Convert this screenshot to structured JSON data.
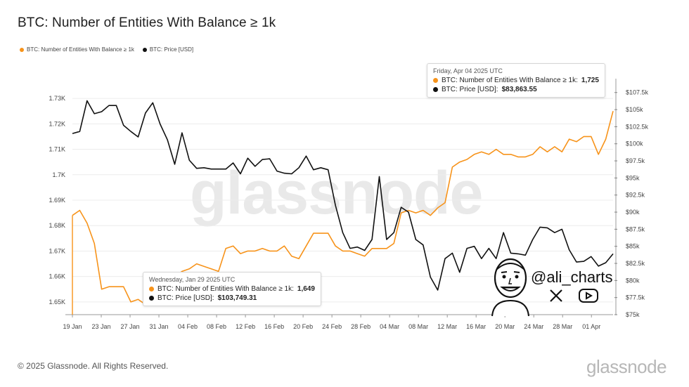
{
  "title": "BTC: Number of Entities With Balance ≥ 1k",
  "legend": {
    "entities_label": "BTC: Number of Entities With Balance ≥ 1k",
    "price_label": "BTC: Price [USD]"
  },
  "colors": {
    "entities": "#F7931A",
    "price": "#111111",
    "grid": "#ececec"
  },
  "chart_data": {
    "type": "line",
    "title": "BTC: Number of Entities With Balance ≥ 1k",
    "x_ticks": [
      "19 Jan",
      "23 Jan",
      "27 Jan",
      "31 Jan",
      "04 Feb",
      "08 Feb",
      "12 Feb",
      "16 Feb",
      "20 Feb",
      "24 Feb",
      "28 Feb",
      "04 Mar",
      "08 Mar",
      "12 Mar",
      "16 Mar",
      "20 Mar",
      "24 Mar",
      "28 Mar",
      "01 Apr"
    ],
    "y_left_ticks": [
      "1.65K",
      "1.66K",
      "1.67K",
      "1.68K",
      "1.69K",
      "1.7K",
      "1.71K",
      "1.72K",
      "1.73K"
    ],
    "y_left_range": [
      1645,
      1735
    ],
    "y_right_ticks": [
      "$75k",
      "$77.5k",
      "$80k",
      "$82.5k",
      "$85k",
      "$87.5k",
      "$90k",
      "$92.5k",
      "$95k",
      "$97.5k",
      "$100k",
      "$102.5k",
      "$105k",
      "$107.5k"
    ],
    "y_right_range": [
      75000,
      108500
    ],
    "x_start": "2025-01-19",
    "x_end": "2025-04-04",
    "series": [
      {
        "name": "BTC: Number of Entities With Balance ≥ 1k",
        "axis": "left",
        "values": [
          1684,
          1686,
          1681,
          1673,
          1655,
          1656,
          1656,
          1656,
          1650,
          1651,
          1649,
          1649,
          1660,
          1661,
          1660,
          1662,
          1663,
          1665,
          1664,
          1663,
          1662,
          1671,
          1672,
          1669,
          1670,
          1670,
          1671,
          1670,
          1670,
          1672,
          1668,
          1667,
          1672,
          1677,
          1677,
          1677,
          1672,
          1670,
          1670,
          1669,
          1668,
          1671,
          1671,
          1671,
          1673,
          1685,
          1686,
          1685,
          1686,
          1684,
          1687,
          1689,
          1703,
          1705,
          1706,
          1708,
          1709,
          1708,
          1710,
          1708,
          1708,
          1707,
          1707,
          1708,
          1711,
          1709,
          1711,
          1709,
          1714,
          1713,
          1715,
          1715,
          1708,
          1714,
          1725
        ]
      },
      {
        "name": "BTC: Price [USD]",
        "axis": "right",
        "values": [
          101500,
          101800,
          106300,
          104400,
          104700,
          105600,
          105600,
          102700,
          101800,
          101000,
          104500,
          106000,
          102900,
          100600,
          97000,
          101600,
          97600,
          96400,
          96500,
          96300,
          96300,
          96300,
          97200,
          95600,
          97900,
          96700,
          97700,
          97800,
          96000,
          95700,
          95600,
          96500,
          98200,
          96200,
          96500,
          96200,
          91000,
          87000,
          84700,
          84900,
          84400,
          86000,
          95200,
          86000,
          87000,
          90700,
          90000,
          86000,
          85200,
          80500,
          78600,
          83200,
          84000,
          81200,
          84700,
          85000,
          83200,
          84700,
          83200,
          87000,
          84000,
          83900,
          83700,
          86000,
          87800,
          87700,
          87000,
          87500,
          84500,
          82700,
          82800,
          83500,
          82100,
          82600,
          83900
        ]
      }
    ]
  },
  "tooltip_apr": {
    "date": "Friday, Apr 04 2025 UTC",
    "entities_label": "BTC: Number of Entities With Balance ≥ 1k:",
    "entities_value": "1,725",
    "price_label": "BTC: Price [USD]:",
    "price_value": "$83,863.55"
  },
  "tooltip_jan": {
    "date": "Wednesday, Jan 29 2025 UTC",
    "entities_label": "BTC: Number of Entities With Balance ≥ 1k:",
    "entities_value": "1,649",
    "price_label": "BTC: Price [USD]:",
    "price_value": "$103,749.31"
  },
  "watermark": "glassnode",
  "social": {
    "handle": "@ali_charts",
    "icons": [
      "x-icon",
      "youtube-icon"
    ]
  },
  "footer": "© 2025 Glassnode. All Rights Reserved.",
  "brand": "glassnode"
}
